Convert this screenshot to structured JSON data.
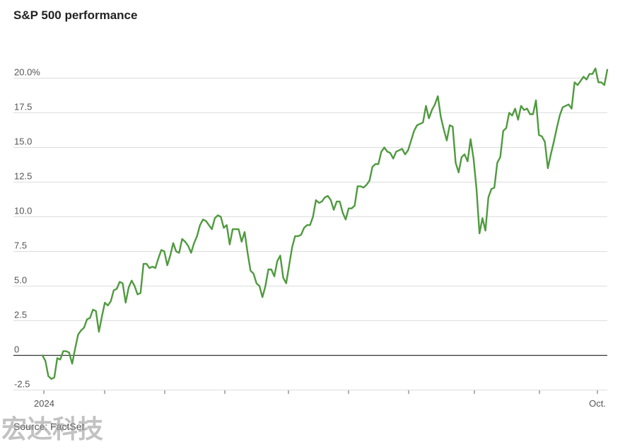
{
  "title": "S&P 500 performance",
  "source": "Source: FactSet",
  "watermark_text": "宏达科技",
  "colors": {
    "line": "#4f9a3f",
    "grid": "#dddddd",
    "zero_line": "#333333",
    "text": "#555555"
  },
  "chart_data": {
    "type": "line",
    "title": "S&P 500 performance",
    "xlabel": "",
    "ylabel": "",
    "ylim": [
      -2.5,
      21.5
    ],
    "x_tick_labels": [
      "2024",
      "",
      "",
      "",
      "",
      "",
      "",
      "",
      "",
      "Oct."
    ],
    "y_ticks": [
      {
        "value": -2.5,
        "label": "-2.5"
      },
      {
        "value": 0,
        "label": "0"
      },
      {
        "value": 2.5,
        "label": "2.5"
      },
      {
        "value": 5,
        "label": "5.0"
      },
      {
        "value": 7.5,
        "label": "7.5"
      },
      {
        "value": 10,
        "label": "10.0"
      },
      {
        "value": 12.5,
        "label": "12.5"
      },
      {
        "value": 15,
        "label": "15.0"
      },
      {
        "value": 17.5,
        "label": "17.5"
      },
      {
        "value": 20,
        "label": "20.0%"
      }
    ],
    "grid": true,
    "series": [
      {
        "values": [
          0.0,
          -0.4,
          -1.5,
          -1.7,
          -1.6,
          -0.2,
          -0.3,
          0.3,
          0.3,
          0.2,
          -0.6,
          0.5,
          1.5,
          1.8,
          2.0,
          2.6,
          2.7,
          3.3,
          3.2,
          1.7,
          2.8,
          3.8,
          3.6,
          3.9,
          4.7,
          4.8,
          5.3,
          5.2,
          3.8,
          4.9,
          5.4,
          5.0,
          4.4,
          4.5,
          6.6,
          6.6,
          6.3,
          6.4,
          6.3,
          7.0,
          7.6,
          7.5,
          6.5,
          7.2,
          8.1,
          7.5,
          7.4,
          8.4,
          8.2,
          7.9,
          7.4,
          8.1,
          8.6,
          9.4,
          9.8,
          9.7,
          9.4,
          9.1,
          9.9,
          10.1,
          10.0,
          9.2,
          9.4,
          8.0,
          9.1,
          9.1,
          9.1,
          8.2,
          8.9,
          7.4,
          6.1,
          5.9,
          5.2,
          5.0,
          4.2,
          5.0,
          6.2,
          6.2,
          5.7,
          6.8,
          7.2,
          5.6,
          5.2,
          6.5,
          7.8,
          8.6,
          8.6,
          8.7,
          9.2,
          9.4,
          9.4,
          10.0,
          11.2,
          11.0,
          11.1,
          11.4,
          11.5,
          11.2,
          10.5,
          11.1,
          11.1,
          10.3,
          9.8,
          10.6,
          10.6,
          10.8,
          12.2,
          12.2,
          12.1,
          12.3,
          12.6,
          13.6,
          13.8,
          13.8,
          14.7,
          15.0,
          14.7,
          14.6,
          14.2,
          14.7,
          14.8,
          14.9,
          14.5,
          14.8,
          15.5,
          16.2,
          16.6,
          16.7,
          16.8,
          18.0,
          17.1,
          17.7,
          18.1,
          18.7,
          17.2,
          16.3,
          15.5,
          16.6,
          16.5,
          13.9,
          13.2,
          14.3,
          14.5,
          14.0,
          15.6,
          14.2,
          12.0,
          8.8,
          9.9,
          9.0,
          11.4,
          12.0,
          12.1,
          13.9,
          14.3,
          16.2,
          16.4,
          17.5,
          17.3,
          17.8,
          17.0,
          18.0,
          17.7,
          17.8,
          17.4,
          17.4,
          18.4,
          15.9,
          15.8,
          15.4,
          13.5,
          14.5,
          15.4,
          16.4,
          17.3,
          17.9,
          18.0,
          18.1,
          17.8,
          19.7,
          19.5,
          19.8,
          20.1,
          19.9,
          20.3,
          20.3,
          20.7,
          19.7,
          19.7,
          19.5,
          20.6
        ]
      }
    ]
  }
}
